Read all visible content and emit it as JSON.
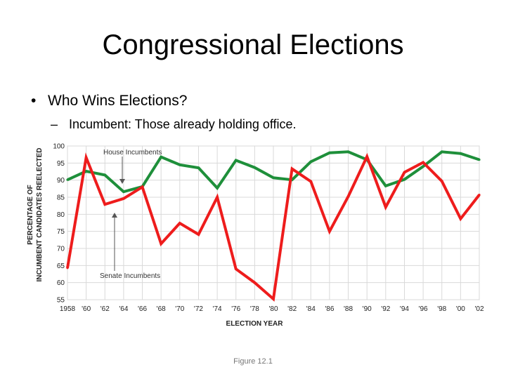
{
  "slide": {
    "title": "Congressional Elections",
    "bullet": "Who Wins Elections?",
    "sub_bullet": "Incumbent: Those already holding office.",
    "caption": "Figure 12.1"
  },
  "chart_data": {
    "type": "line",
    "x": [
      1958,
      1960,
      1962,
      1964,
      1966,
      1968,
      1970,
      1972,
      1974,
      1976,
      1978,
      1980,
      1982,
      1984,
      1986,
      1988,
      1990,
      1992,
      1994,
      1996,
      1998,
      2000,
      2002
    ],
    "x_tick_labels": [
      "1958",
      "'60",
      "'62",
      "'64",
      "'66",
      "'68",
      "'70",
      "'72",
      "'74",
      "'76",
      "'78",
      "'80",
      "'82",
      "'84",
      "'86",
      "'88",
      "'90",
      "'92",
      "'94",
      "'96",
      "'98",
      "'00",
      "'02"
    ],
    "y_ticks": [
      55,
      60,
      65,
      70,
      75,
      80,
      85,
      90,
      95,
      100
    ],
    "ylim": [
      55,
      100
    ],
    "xlabel": "ELECTION YEAR",
    "ylabel_lines": [
      "PERCENTAGE OF",
      "INCUMBENT CANDIDATES REELECTED"
    ],
    "grid": true,
    "series": [
      {
        "name": "House Incumbents",
        "color": "#1e8f3a",
        "values": [
          90.1,
          92.6,
          91.5,
          86.6,
          88.1,
          96.8,
          94.5,
          93.6,
          87.7,
          95.8,
          93.7,
          90.7,
          90.1,
          95.4,
          98.0,
          98.3,
          96.0,
          88.3,
          90.2,
          94.0,
          98.3,
          97.8,
          96.0
        ]
      },
      {
        "name": "Senate Incumbents",
        "color": "#ee1c1c",
        "values": [
          64.3,
          96.6,
          82.9,
          84.6,
          88.0,
          71.4,
          77.4,
          74.1,
          85.0,
          64.0,
          60.0,
          55.2,
          93.3,
          89.6,
          75.0,
          85.2,
          96.9,
          82.1,
          92.3,
          95.2,
          89.7,
          78.7,
          85.7
        ]
      }
    ]
  }
}
